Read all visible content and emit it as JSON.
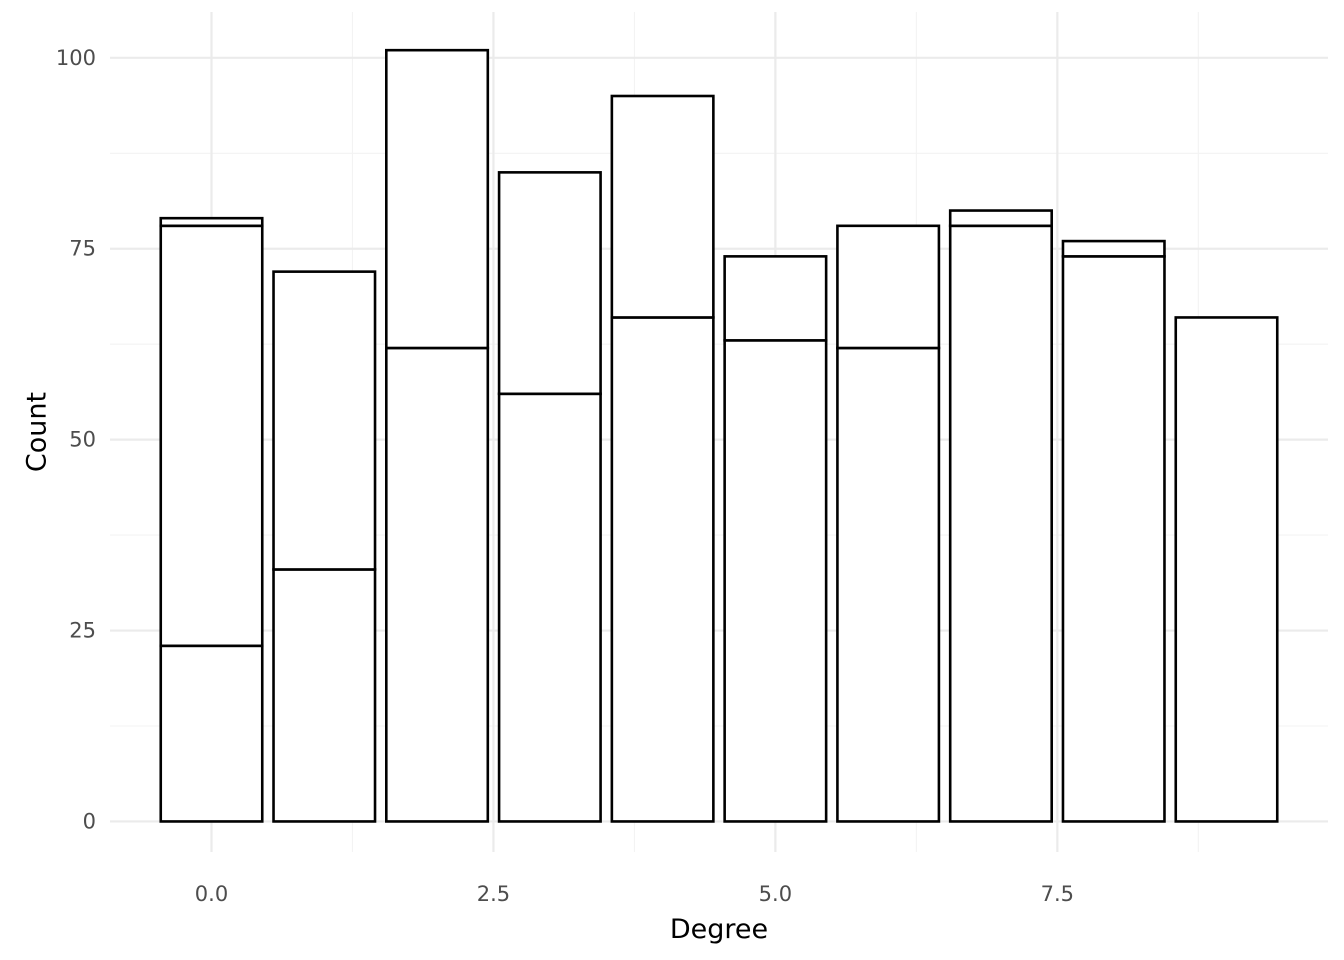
{
  "chart_data": {
    "type": "bar",
    "stacked": true,
    "title": "",
    "xlabel": "Degree",
    "ylabel": "Count",
    "x": [
      0,
      1,
      2,
      3,
      4,
      5,
      6,
      7,
      8,
      9
    ],
    "xlim": [
      -0.9,
      9.9
    ],
    "ylim": [
      -4,
      106
    ],
    "x_ticks": [
      0.0,
      2.5,
      5.0,
      7.5
    ],
    "x_tick_labels": [
      "0.0",
      "2.5",
      "5.0",
      "7.5"
    ],
    "x_minor_ticks": [
      1.25,
      3.75,
      6.25,
      8.75
    ],
    "y_ticks": [
      0,
      25,
      50,
      75,
      100
    ],
    "y_tick_labels": [
      "0",
      "25",
      "50",
      "75",
      "100"
    ],
    "y_minor_ticks": [
      12.5,
      37.5,
      62.5,
      87.5
    ],
    "grid": true,
    "bar_fill": "#ffffff",
    "bar_outline": "#000000",
    "stack_boundaries": [
      [
        23,
        78,
        79
      ],
      [
        33,
        72
      ],
      [
        62,
        101
      ],
      [
        56,
        85
      ],
      [
        66,
        95
      ],
      [
        63,
        74
      ],
      [
        62,
        78
      ],
      [
        78,
        80
      ],
      [
        74,
        76
      ],
      [
        66
      ]
    ]
  }
}
